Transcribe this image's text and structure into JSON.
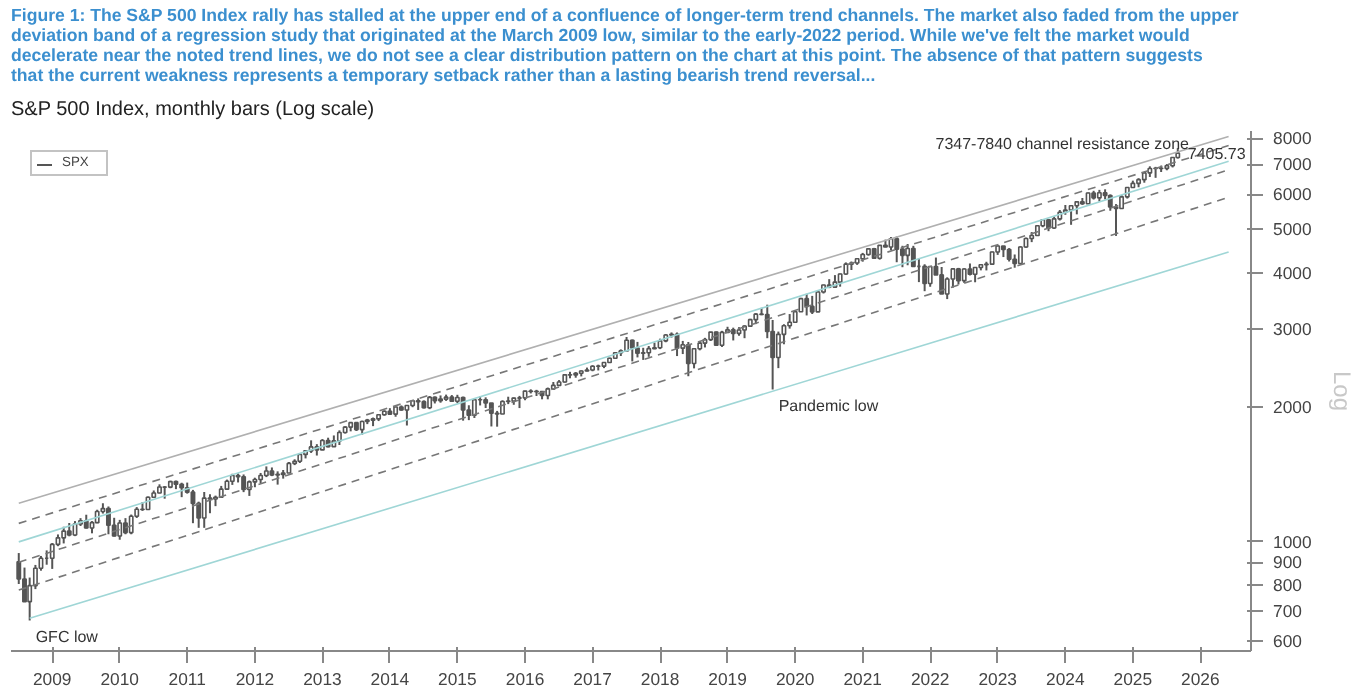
{
  "chart_data": {
    "type": "candlestick",
    "title": "Figure 1: The S&P 500 Index rally has stalled at the upper end of a confluence of longer-term trend channels. The market also faded from the upper deviation band of a regression study that originated at the March 2009 low, similar to the early-2022 period. While we've felt the market would decelerate near the noted trend lines, we do not see a clear distribution pattern on the chart at this point. The absence of that pattern suggests that the current weakness represents a temporary setback rather than a lasting bearish trend reversal...",
    "subtitle": "S&P 500 Index, monthly bars (Log scale)",
    "ylabel": "Log",
    "log": true,
    "grid": false,
    "legend": "top left",
    "ylim": [
      570,
      8300
    ],
    "yticks": [
      600,
      700,
      800,
      900,
      1000,
      2000,
      3000,
      4000,
      5000,
      6000,
      7000,
      8000
    ],
    "xlim": [
      "2008-11-20",
      "2027-04"
    ],
    "xticks": [
      {
        "value": "2009-07",
        "label": "2009"
      },
      {
        "value": "2010-07",
        "label": "2010"
      },
      {
        "value": "2011-07",
        "label": "2011"
      },
      {
        "value": "2012-07",
        "label": "2012"
      },
      {
        "value": "2013-07",
        "label": "2013"
      },
      {
        "value": "2014-07",
        "label": "2014"
      },
      {
        "value": "2015-07",
        "label": "2015"
      },
      {
        "value": "2016-07",
        "label": "2016"
      },
      {
        "value": "2017-07",
        "label": "2017"
      },
      {
        "value": "2018-07",
        "label": "2018"
      },
      {
        "value": "2019-07",
        "label": "2019"
      },
      {
        "value": "2020-07",
        "label": "2020"
      },
      {
        "value": "2021-07",
        "label": "2021"
      },
      {
        "value": "2022-07",
        "label": "2022"
      },
      {
        "value": "2023-07",
        "label": "2023"
      },
      {
        "value": "2024-07",
        "label": "2024"
      },
      {
        "value": "2025-07",
        "label": "2025"
      },
      {
        "value": "2026-07",
        "label": "2026"
      }
    ],
    "annotations": [
      "7347-7840 channel resistance zone",
      {
        "text": "7405.73",
        "x": "2026-03",
        "y": 7405.73
      },
      {
        "text": "Pandemic low",
        "x": "2020-03",
        "y": 2192
      },
      {
        "text": "GFC low",
        "x": "2009-03",
        "y": 667
      }
    ],
    "series": [
      {
        "name": "SPX",
        "color": "#555555",
        "x": [
          "2009-01",
          "2009-02",
          "2009-03",
          "2009-04",
          "2009-05",
          "2009-06",
          "2009-07",
          "2009-08",
          "2009-09",
          "2009-10",
          "2009-11",
          "2009-12",
          "2010-01",
          "2010-02",
          "2010-03",
          "2010-04",
          "2010-05",
          "2010-06",
          "2010-07",
          "2010-08",
          "2010-09",
          "2010-10",
          "2010-11",
          "2010-12",
          "2011-01",
          "2011-02",
          "2011-03",
          "2011-04",
          "2011-05",
          "2011-06",
          "2011-07",
          "2011-08",
          "2011-09",
          "2011-10",
          "2011-11",
          "2011-12",
          "2012-01",
          "2012-02",
          "2012-03",
          "2012-04",
          "2012-05",
          "2012-06",
          "2012-07",
          "2012-08",
          "2012-09",
          "2012-10",
          "2012-11",
          "2012-12",
          "2013-01",
          "2013-02",
          "2013-03",
          "2013-04",
          "2013-05",
          "2013-06",
          "2013-07",
          "2013-08",
          "2013-09",
          "2013-10",
          "2013-11",
          "2013-12",
          "2014-01",
          "2014-02",
          "2014-03",
          "2014-04",
          "2014-05",
          "2014-06",
          "2014-07",
          "2014-08",
          "2014-09",
          "2014-10",
          "2014-11",
          "2014-12",
          "2015-01",
          "2015-02",
          "2015-03",
          "2015-04",
          "2015-05",
          "2015-06",
          "2015-07",
          "2015-08",
          "2015-09",
          "2015-10",
          "2015-11",
          "2015-12",
          "2016-01",
          "2016-02",
          "2016-03",
          "2016-04",
          "2016-05",
          "2016-06",
          "2016-07",
          "2016-08",
          "2016-09",
          "2016-10",
          "2016-11",
          "2016-12",
          "2017-01",
          "2017-02",
          "2017-03",
          "2017-04",
          "2017-05",
          "2017-06",
          "2017-07",
          "2017-08",
          "2017-09",
          "2017-10",
          "2017-11",
          "2017-12",
          "2018-01",
          "2018-02",
          "2018-03",
          "2018-04",
          "2018-05",
          "2018-06",
          "2018-07",
          "2018-08",
          "2018-09",
          "2018-10",
          "2018-11",
          "2018-12",
          "2019-01",
          "2019-02",
          "2019-03",
          "2019-04",
          "2019-05",
          "2019-06",
          "2019-07",
          "2019-08",
          "2019-09",
          "2019-10",
          "2019-11",
          "2019-12",
          "2020-01",
          "2020-02",
          "2020-03",
          "2020-04",
          "2020-05",
          "2020-06",
          "2020-07",
          "2020-08",
          "2020-09",
          "2020-10",
          "2020-11",
          "2020-12",
          "2021-01",
          "2021-02",
          "2021-03",
          "2021-04",
          "2021-05",
          "2021-06",
          "2021-07",
          "2021-08",
          "2021-09",
          "2021-10",
          "2021-11",
          "2021-12",
          "2022-01",
          "2022-02",
          "2022-03",
          "2022-04",
          "2022-05",
          "2022-06",
          "2022-07",
          "2022-08",
          "2022-09",
          "2022-10",
          "2022-11",
          "2022-12",
          "2023-01",
          "2023-02",
          "2023-03",
          "2023-04",
          "2023-05",
          "2023-06",
          "2023-07",
          "2023-08",
          "2023-09",
          "2023-10",
          "2023-11",
          "2023-12",
          "2024-01",
          "2024-02",
          "2024-03",
          "2024-04",
          "2024-05",
          "2024-06",
          "2024-07",
          "2024-08",
          "2024-09",
          "2024-10",
          "2024-11",
          "2024-12",
          "2025-01",
          "2025-02",
          "2025-03",
          "2025-04",
          "2025-05",
          "2025-06",
          "2025-07",
          "2025-08",
          "2025-09",
          "2025-10",
          "2025-11",
          "2025-12",
          "2026-01",
          "2026-02",
          "2026-03"
        ],
        "ohlc": [
          [
            903,
            944,
            805,
            826
          ],
          [
            826,
            876,
            735,
            735
          ],
          [
            735,
            832,
            667,
            798
          ],
          [
            798,
            888,
            784,
            873
          ],
          [
            873,
            930,
            862,
            919
          ],
          [
            919,
            957,
            889,
            919
          ],
          [
            919,
            994,
            870,
            987
          ],
          [
            987,
            1039,
            978,
            1021
          ],
          [
            1021,
            1081,
            992,
            1057
          ],
          [
            1057,
            1102,
            1029,
            1036
          ],
          [
            1036,
            1113,
            1030,
            1096
          ],
          [
            1096,
            1130,
            1085,
            1115
          ],
          [
            1115,
            1150,
            1071,
            1074
          ],
          [
            1074,
            1113,
            1045,
            1104
          ],
          [
            1104,
            1180,
            1101,
            1169
          ],
          [
            1169,
            1220,
            1157,
            1187
          ],
          [
            1187,
            1200,
            1040,
            1089
          ],
          [
            1089,
            1132,
            1028,
            1031
          ],
          [
            1031,
            1120,
            1011,
            1102
          ],
          [
            1102,
            1130,
            1040,
            1049
          ],
          [
            1049,
            1151,
            1040,
            1141
          ],
          [
            1141,
            1196,
            1131,
            1183
          ],
          [
            1183,
            1228,
            1173,
            1181
          ],
          [
            1181,
            1263,
            1181,
            1258
          ],
          [
            1258,
            1303,
            1257,
            1286
          ],
          [
            1286,
            1345,
            1285,
            1327
          ],
          [
            1327,
            1333,
            1249,
            1326
          ],
          [
            1326,
            1370,
            1318,
            1364
          ],
          [
            1364,
            1371,
            1312,
            1345
          ],
          [
            1345,
            1356,
            1259,
            1321
          ],
          [
            1321,
            1357,
            1282,
            1292
          ],
          [
            1292,
            1307,
            1101,
            1219
          ],
          [
            1219,
            1230,
            1075,
            1131
          ],
          [
            1131,
            1293,
            1075,
            1253
          ],
          [
            1253,
            1278,
            1159,
            1247
          ],
          [
            1247,
            1269,
            1202,
            1258
          ],
          [
            1258,
            1334,
            1258,
            1312
          ],
          [
            1312,
            1378,
            1311,
            1366
          ],
          [
            1366,
            1420,
            1341,
            1408
          ],
          [
            1408,
            1422,
            1358,
            1398
          ],
          [
            1398,
            1415,
            1292,
            1310
          ],
          [
            1310,
            1372,
            1267,
            1362
          ],
          [
            1362,
            1392,
            1325,
            1379
          ],
          [
            1379,
            1426,
            1354,
            1407
          ],
          [
            1407,
            1475,
            1396,
            1441
          ],
          [
            1441,
            1467,
            1403,
            1412
          ],
          [
            1412,
            1438,
            1343,
            1416
          ],
          [
            1416,
            1448,
            1385,
            1426
          ],
          [
            1426,
            1509,
            1426,
            1498
          ],
          [
            1498,
            1530,
            1485,
            1515
          ],
          [
            1515,
            1570,
            1501,
            1569
          ],
          [
            1569,
            1598,
            1537,
            1598
          ],
          [
            1598,
            1687,
            1581,
            1631
          ],
          [
            1631,
            1654,
            1560,
            1606
          ],
          [
            1606,
            1698,
            1604,
            1686
          ],
          [
            1686,
            1710,
            1627,
            1633
          ],
          [
            1633,
            1730,
            1633,
            1682
          ],
          [
            1682,
            1776,
            1647,
            1757
          ],
          [
            1757,
            1814,
            1747,
            1806
          ],
          [
            1806,
            1849,
            1767,
            1848
          ],
          [
            1848,
            1851,
            1770,
            1783
          ],
          [
            1783,
            1867,
            1737,
            1859
          ],
          [
            1859,
            1884,
            1834,
            1872
          ],
          [
            1872,
            1897,
            1815,
            1884
          ],
          [
            1884,
            1925,
            1863,
            1924
          ],
          [
            1924,
            1968,
            1915,
            1960
          ],
          [
            1960,
            1991,
            1930,
            1931
          ],
          [
            1931,
            2005,
            1905,
            2003
          ],
          [
            2003,
            2019,
            1965,
            1972
          ],
          [
            1972,
            2019,
            1821,
            2018
          ],
          [
            2018,
            2076,
            2001,
            2068
          ],
          [
            2068,
            2094,
            1973,
            2059
          ],
          [
            2059,
            2072,
            1988,
            1995
          ],
          [
            1995,
            2120,
            1981,
            2105
          ],
          [
            2105,
            2115,
            2040,
            2068
          ],
          [
            2068,
            2126,
            2048,
            2086
          ],
          [
            2086,
            2135,
            2067,
            2107
          ],
          [
            2107,
            2130,
            2056,
            2063
          ],
          [
            2063,
            2133,
            2045,
            2104
          ],
          [
            2104,
            2113,
            1867,
            1972
          ],
          [
            1972,
            2021,
            1872,
            1920
          ],
          [
            1920,
            2094,
            1893,
            2079
          ],
          [
            2079,
            2117,
            2019,
            2080
          ],
          [
            2080,
            2105,
            1993,
            2044
          ],
          [
            2044,
            2044,
            1812,
            1940
          ],
          [
            1940,
            1963,
            1810,
            1932
          ],
          [
            1932,
            2073,
            1932,
            2060
          ],
          [
            2060,
            2112,
            2033,
            2065
          ],
          [
            2065,
            2103,
            2026,
            2097
          ],
          [
            2097,
            2121,
            1992,
            2099
          ],
          [
            2099,
            2178,
            2074,
            2174
          ],
          [
            2174,
            2194,
            2148,
            2171
          ],
          [
            2171,
            2188,
            2120,
            2168
          ],
          [
            2168,
            2169,
            2084,
            2126
          ],
          [
            2126,
            2214,
            2084,
            2199
          ],
          [
            2199,
            2278,
            2187,
            2239
          ],
          [
            2239,
            2301,
            2234,
            2279
          ],
          [
            2279,
            2371,
            2272,
            2364
          ],
          [
            2364,
            2401,
            2322,
            2363
          ],
          [
            2363,
            2398,
            2329,
            2384
          ],
          [
            2384,
            2419,
            2345,
            2412
          ],
          [
            2412,
            2454,
            2406,
            2423
          ],
          [
            2423,
            2484,
            2408,
            2470
          ],
          [
            2470,
            2491,
            2418,
            2472
          ],
          [
            2472,
            2520,
            2447,
            2519
          ],
          [
            2519,
            2582,
            2519,
            2575
          ],
          [
            2575,
            2657,
            2566,
            2648
          ],
          [
            2648,
            2695,
            2605,
            2674
          ],
          [
            2674,
            2873,
            2674,
            2824
          ],
          [
            2824,
            2835,
            2533,
            2714
          ],
          [
            2714,
            2801,
            2586,
            2641
          ],
          [
            2641,
            2717,
            2553,
            2648
          ],
          [
            2648,
            2742,
            2594,
            2705
          ],
          [
            2705,
            2791,
            2698,
            2718
          ],
          [
            2718,
            2848,
            2699,
            2816
          ],
          [
            2816,
            2917,
            2796,
            2902
          ],
          [
            2902,
            2941,
            2864,
            2914
          ],
          [
            2914,
            2940,
            2604,
            2712
          ],
          [
            2712,
            2815,
            2631,
            2760
          ],
          [
            2760,
            2800,
            2347,
            2507
          ],
          [
            2507,
            2708,
            2444,
            2704
          ],
          [
            2704,
            2813,
            2682,
            2784
          ],
          [
            2784,
            2860,
            2722,
            2834
          ],
          [
            2834,
            2949,
            2814,
            2946
          ],
          [
            2946,
            2955,
            2750,
            2752
          ],
          [
            2752,
            2965,
            2729,
            2942
          ],
          [
            2942,
            3028,
            2939,
            2980
          ],
          [
            2980,
            3014,
            2822,
            2926
          ],
          [
            2926,
            3022,
            2891,
            2977
          ],
          [
            2977,
            3050,
            2855,
            3038
          ],
          [
            3038,
            3154,
            3038,
            3141
          ],
          [
            3141,
            3248,
            3070,
            3231
          ],
          [
            3231,
            3338,
            3214,
            3226
          ],
          [
            3226,
            3393,
            2855,
            2954
          ],
          [
            2954,
            3136,
            2192,
            2585
          ],
          [
            2585,
            2954,
            2447,
            2912
          ],
          [
            2912,
            3068,
            2767,
            3044
          ],
          [
            3044,
            3233,
            2999,
            3100
          ],
          [
            3100,
            3280,
            3100,
            3271
          ],
          [
            3271,
            3514,
            3271,
            3500
          ],
          [
            3500,
            3588,
            3210,
            3363
          ],
          [
            3363,
            3550,
            3234,
            3270
          ],
          [
            3270,
            3646,
            3270,
            3622
          ],
          [
            3622,
            3760,
            3594,
            3756
          ],
          [
            3756,
            3870,
            3694,
            3714
          ],
          [
            3714,
            3951,
            3700,
            3811
          ],
          [
            3811,
            3983,
            3723,
            3973
          ],
          [
            3973,
            4218,
            3955,
            4181
          ],
          [
            4181,
            4238,
            4056,
            4204
          ],
          [
            4204,
            4302,
            4165,
            4298
          ],
          [
            4298,
            4430,
            4234,
            4395
          ],
          [
            4395,
            4538,
            4367,
            4523
          ],
          [
            4523,
            4546,
            4306,
            4308
          ],
          [
            4308,
            4608,
            4279,
            4605
          ],
          [
            4605,
            4743,
            4560,
            4567
          ],
          [
            4567,
            4808,
            4495,
            4766
          ],
          [
            4766,
            4819,
            4222,
            4516
          ],
          [
            4516,
            4595,
            4115,
            4374
          ],
          [
            4374,
            4637,
            4157,
            4530
          ],
          [
            4530,
            4594,
            4132,
            4132
          ],
          [
            4132,
            4308,
            3811,
            4132
          ],
          [
            4132,
            4178,
            3637,
            3785
          ],
          [
            3785,
            4141,
            3721,
            4130
          ],
          [
            4130,
            4325,
            3955,
            3955
          ],
          [
            3955,
            4120,
            3585,
            3586
          ],
          [
            3586,
            3906,
            3492,
            3872
          ],
          [
            3872,
            4080,
            3704,
            4080
          ],
          [
            4080,
            4101,
            3764,
            3840
          ],
          [
            3840,
            4095,
            3795,
            4077
          ],
          [
            4077,
            4195,
            3944,
            3970
          ],
          [
            3970,
            4111,
            3808,
            4109
          ],
          [
            4109,
            4170,
            4049,
            4169
          ],
          [
            4169,
            4232,
            4048,
            4180
          ],
          [
            4180,
            4458,
            4167,
            4450
          ],
          [
            4450,
            4607,
            4385,
            4589
          ],
          [
            4589,
            4590,
            4336,
            4508
          ],
          [
            4508,
            4541,
            4238,
            4288
          ],
          [
            4288,
            4394,
            4104,
            4194
          ],
          [
            4194,
            4588,
            4194,
            4568
          ],
          [
            4568,
            4794,
            4547,
            4770
          ],
          [
            4770,
            4932,
            4683,
            4846
          ],
          [
            4846,
            5111,
            4845,
            5096
          ],
          [
            5096,
            5265,
            5057,
            5254
          ],
          [
            5254,
            5264,
            4954,
            5036
          ],
          [
            5036,
            5342,
            5012,
            5278
          ],
          [
            5278,
            5524,
            5235,
            5460
          ],
          [
            5460,
            5670,
            5391,
            5522
          ],
          [
            5522,
            5651,
            5120,
            5648
          ],
          [
            5648,
            5768,
            5403,
            5762
          ],
          [
            5762,
            5878,
            5674,
            5705
          ],
          [
            5705,
            6045,
            5696,
            6032
          ],
          [
            6032,
            6100,
            5832,
            5882
          ],
          [
            5882,
            6129,
            5774,
            6041
          ],
          [
            6041,
            6147,
            5837,
            5955
          ],
          [
            5955,
            5987,
            5505,
            5612
          ],
          [
            5612,
            5696,
            4835,
            5569
          ],
          [
            5569,
            5968,
            5568,
            5912
          ],
          [
            5912,
            6215,
            5861,
            6205
          ],
          [
            6205,
            6427,
            6201,
            6339
          ],
          [
            6339,
            6508,
            6212,
            6460
          ],
          [
            6460,
            6700,
            6360,
            6688
          ],
          [
            6688,
            6920,
            6550,
            6840
          ],
          [
            6840,
            6900,
            6521,
            6849
          ],
          [
            6849,
            6945,
            6720,
            6845
          ],
          [
            6845,
            7000,
            6780,
            6940
          ],
          [
            6940,
            7250,
            6880,
            7240
          ],
          [
            7240,
            7600,
            7200,
            7405.73
          ]
        ]
      },
      {
        "type": "line",
        "color": "#b0b0b0",
        "line_style": "solid",
        "x": [
          "2009-01",
          "2026-12"
        ],
        "values": [
          1220,
          8070
        ]
      },
      {
        "type": "line",
        "color": "#777777",
        "line_style": "dashed",
        "x": [
          "2009-01",
          "2026-12"
        ],
        "values": [
          1100,
          7700
        ]
      },
      {
        "type": "line",
        "color": "#9fd6d6",
        "line_style": "solid",
        "x": [
          "2009-01",
          "2026-12"
        ],
        "values": [
          1000,
          7100
        ]
      },
      {
        "type": "line",
        "color": "#777777",
        "line_style": "dashed",
        "x": [
          "2009-01",
          "2026-12"
        ],
        "values": [
          900,
          6800
        ]
      },
      {
        "type": "line",
        "color": "#777777",
        "line_style": "dashed",
        "x": [
          "2009-01",
          "2026-12"
        ],
        "values": [
          780,
          5900
        ]
      },
      {
        "type": "line",
        "color": "#9fd6d6",
        "line_style": "solid",
        "x": [
          "2009-03",
          "2026-12"
        ],
        "values": [
          675,
          4450
        ]
      }
    ]
  }
}
